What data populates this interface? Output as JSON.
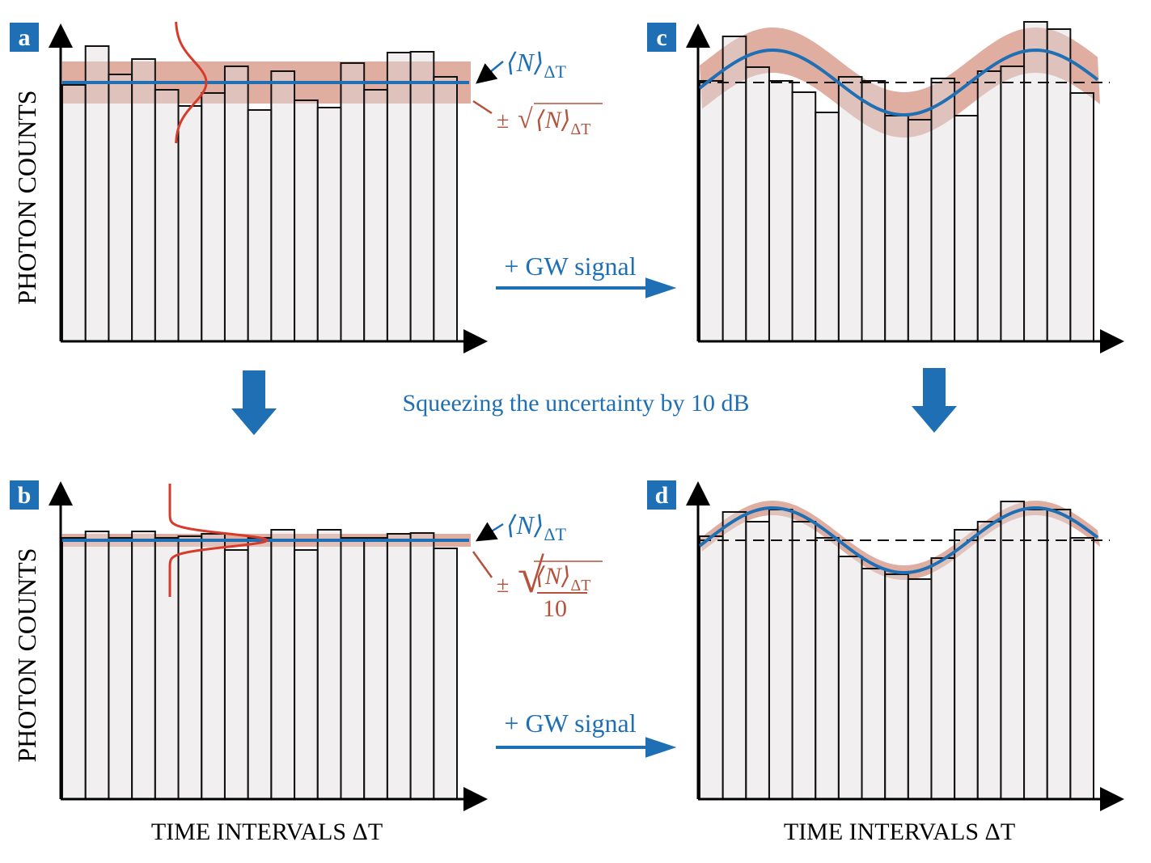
{
  "panels": [
    {
      "label": "a",
      "y_label": "PHOTON COUNTS",
      "counts": [
        317,
        365,
        330,
        349,
        311,
        291,
        307,
        340,
        286,
        334,
        298,
        289,
        344,
        311,
        357,
        358,
        327
      ]
    },
    {
      "label": "b",
      "y_label": "PHOTON COUNTS",
      "x_label": "TIME INTERVALS ΔT",
      "counts": [
        323,
        331,
        323,
        331,
        323,
        325,
        328,
        308,
        323,
        333,
        308,
        333,
        323,
        323,
        328,
        329,
        310
      ]
    },
    {
      "label": "c",
      "counts": [
        322,
        377,
        339,
        322,
        308,
        283,
        327,
        322,
        279,
        274,
        325,
        279,
        334,
        340,
        395,
        386,
        307
      ]
    },
    {
      "label": "d",
      "x_label": "TIME INTERVALS ΔT",
      "counts": [
        325,
        355,
        343,
        358,
        343,
        323,
        300,
        285,
        278,
        272,
        298,
        333,
        343,
        368,
        358,
        358,
        323
      ]
    }
  ],
  "mean_label": {
    "symbol": "⟨N⟩",
    "subscript": "ΔT"
  },
  "noise_label": {
    "sign": "±",
    "root": "√",
    "denominator": "10"
  },
  "signal_label": "+ GW signal",
  "squeeze_label": "Squeezing the uncertainty by 10 dB"
}
